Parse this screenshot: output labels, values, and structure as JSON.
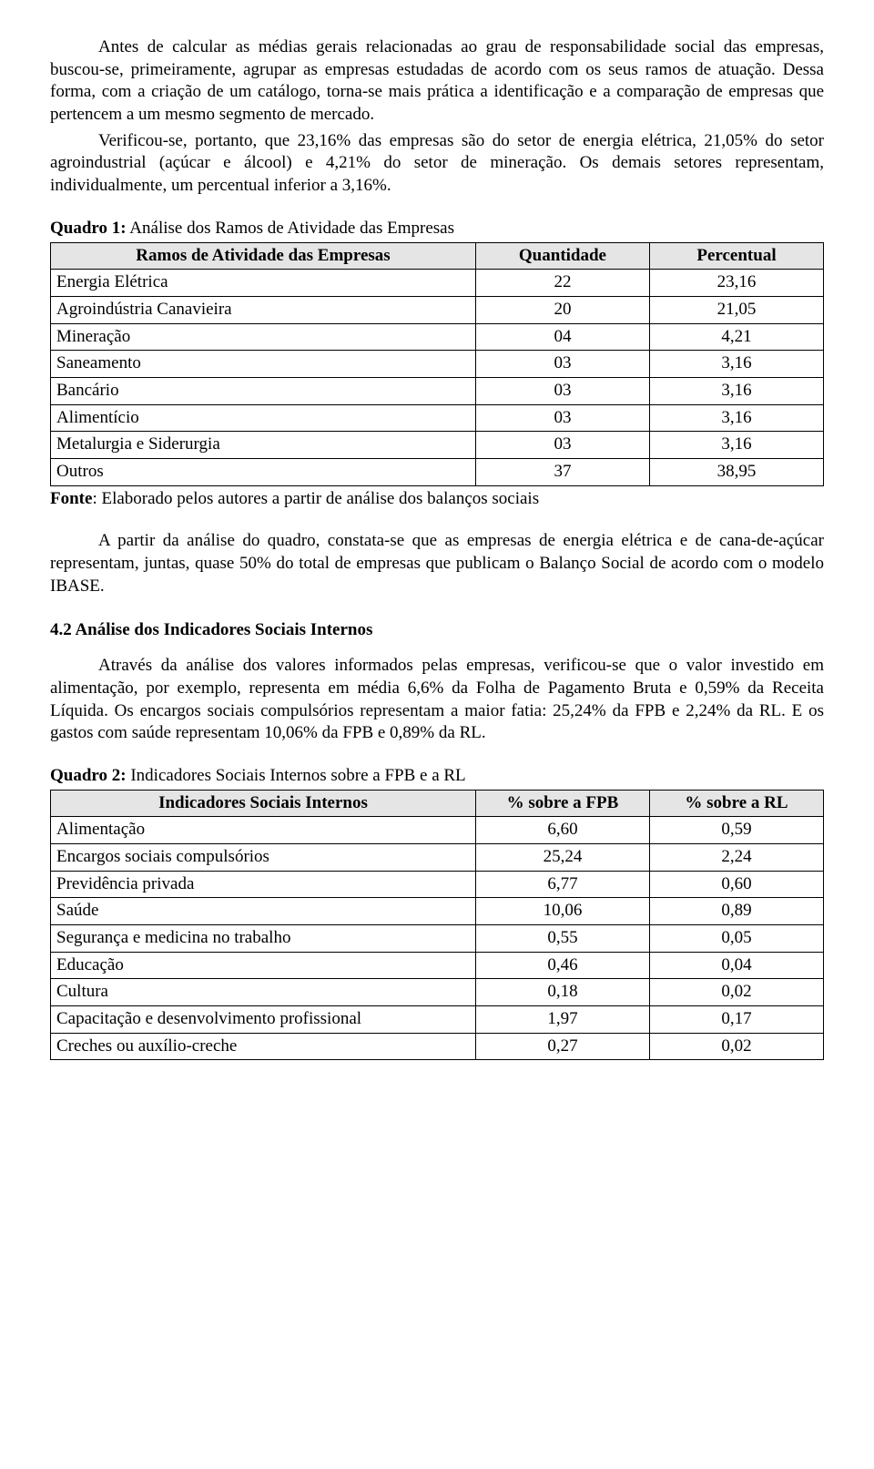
{
  "para1": "Antes de calcular as médias gerais relacionadas ao grau de responsabilidade social das empresas, buscou-se, primeiramente, agrupar as empresas estudadas de acordo com os seus ramos de atuação. Dessa forma, com a criação de um catálogo, torna-se mais prática a identificação e a comparação de empresas que pertencem a um mesmo segmento de mercado.",
  "para2": "Verificou-se, portanto, que 23,16% das empresas são do setor de energia elétrica, 21,05% do setor agroindustrial (açúcar e álcool) e 4,21% do setor de mineração. Os demais setores representam, individualmente, um percentual inferior a 3,16%.",
  "quadro1": {
    "caption_bold": "Quadro 1:",
    "caption_rest": " Análise dos Ramos de Atividade das Empresas",
    "headers": [
      "Ramos de Atividade das Empresas",
      "Quantidade",
      "Percentual"
    ],
    "rows": [
      [
        "Energia Elétrica",
        "22",
        "23,16"
      ],
      [
        "Agroindústria Canavieira",
        "20",
        "21,05"
      ],
      [
        "Mineração",
        "04",
        "4,21"
      ],
      [
        "Saneamento",
        "03",
        "3,16"
      ],
      [
        "Bancário",
        "03",
        "3,16"
      ],
      [
        "Alimentício",
        "03",
        "3,16"
      ],
      [
        "Metalurgia e Siderurgia",
        "03",
        "3,16"
      ],
      [
        "Outros",
        "37",
        "38,95"
      ]
    ],
    "fonte_bold": "Fonte",
    "fonte_rest": ": Elaborado pelos autores a partir de análise dos balanços sociais"
  },
  "para3": "A partir da análise do quadro, constata-se que as empresas de energia elétrica e de cana-de-açúcar representam, juntas, quase 50% do total de empresas que publicam o Balanço Social de acordo com o modelo IBASE.",
  "section42": "4.2 Análise dos Indicadores Sociais Internos",
  "para4": "Através da análise dos valores informados pelas empresas, verificou-se que o valor investido em alimentação, por exemplo, representa em média 6,6% da Folha de Pagamento Bruta e 0,59% da Receita Líquida. Os encargos sociais compulsórios representam a maior fatia: 25,24% da FPB e 2,24% da RL. E os gastos com saúde representam 10,06% da FPB e 0,89% da RL.",
  "quadro2": {
    "caption_bold": "Quadro 2:",
    "caption_rest": " Indicadores Sociais Internos sobre a FPB e a RL",
    "headers": [
      "Indicadores Sociais Internos",
      "% sobre a FPB",
      "% sobre a RL"
    ],
    "rows": [
      [
        "Alimentação",
        "6,60",
        "0,59"
      ],
      [
        "Encargos sociais compulsórios",
        "25,24",
        "2,24"
      ],
      [
        "Previdência privada",
        "6,77",
        "0,60"
      ],
      [
        "Saúde",
        "10,06",
        "0,89"
      ],
      [
        "Segurança e medicina no trabalho",
        "0,55",
        "0,05"
      ],
      [
        "Educação",
        "0,46",
        "0,04"
      ],
      [
        "Cultura",
        "0,18",
        "0,02"
      ],
      [
        "Capacitação e desenvolvimento profissional",
        "1,97",
        "0,17"
      ],
      [
        "Creches ou auxílio-creche",
        "0,27",
        "0,02"
      ]
    ]
  },
  "col_widths": {
    "c1": "55%",
    "c2": "22.5%",
    "c3": "22.5%"
  }
}
